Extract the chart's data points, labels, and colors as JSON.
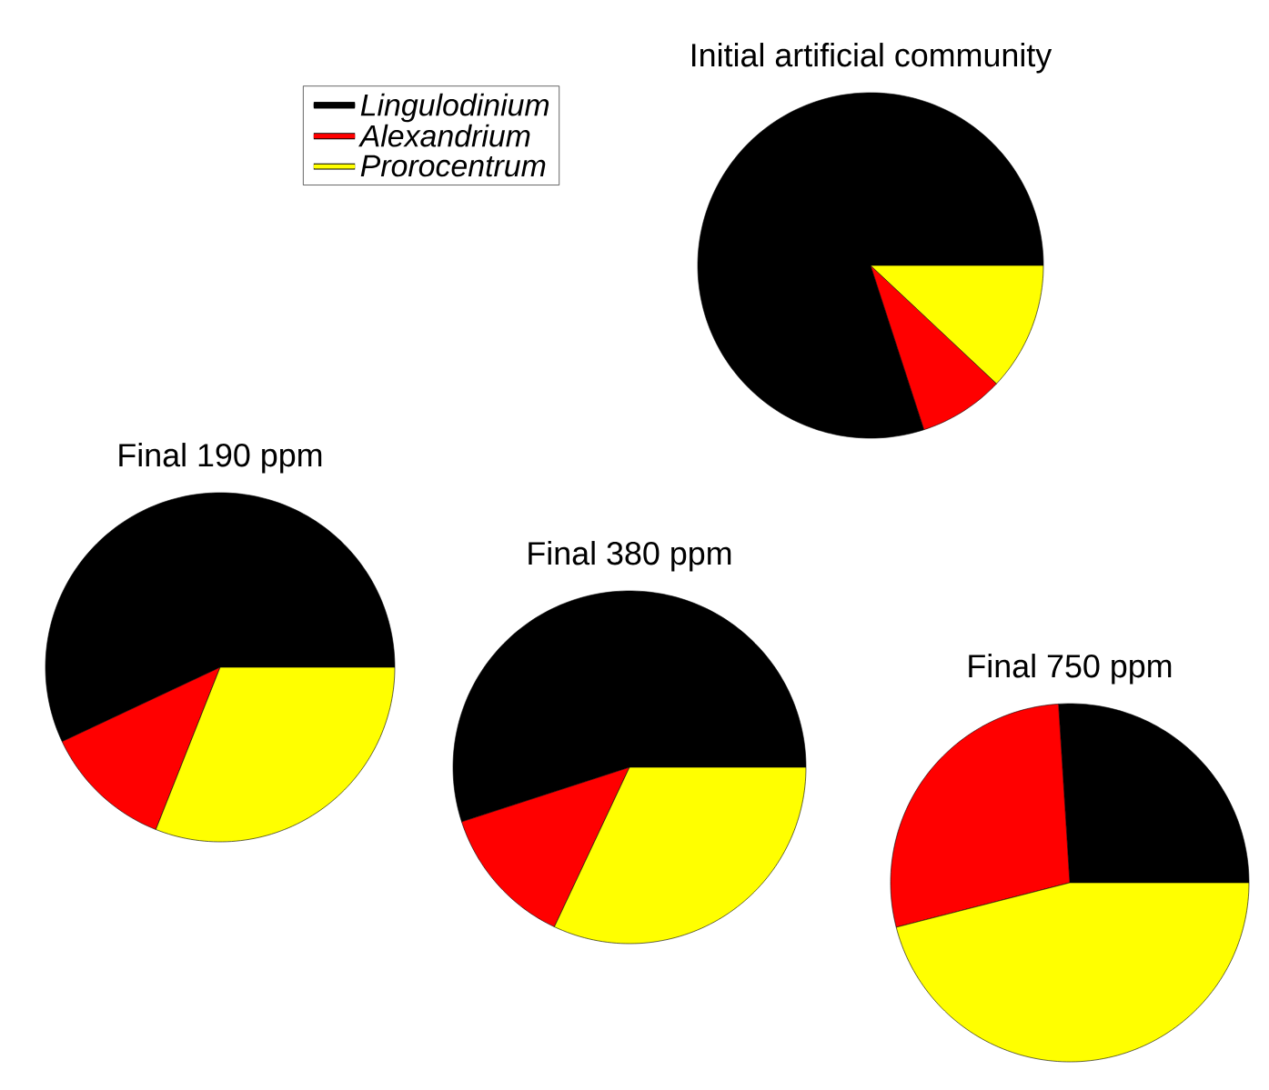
{
  "chart_data": [
    {
      "type": "pie",
      "title": "Initial artificial community",
      "categories": [
        "*Lingulodinium*",
        "*Alexandrium*",
        "*Prorocentrum*"
      ],
      "values": [
        80,
        8,
        12
      ],
      "colors": [
        "#000000",
        "#ff0000",
        "#ffff00"
      ],
      "legend": "top left"
    },
    {
      "type": "pie",
      "title": "Final 190 ppm",
      "categories": [
        null,
        null,
        null
      ],
      "values": [
        57,
        12,
        31
      ],
      "colors": [
        "#000000",
        "#ff0000",
        "#ffff00"
      ]
    },
    {
      "type": "pie",
      "title": "Final 380 ppm",
      "categories": [
        null,
        null,
        null
      ],
      "values": [
        55,
        13,
        32
      ],
      "colors": [
        "#000000",
        "#ff0000",
        "#ffff00"
      ]
    },
    {
      "type": "pie",
      "title": "Final 750 ppm",
      "categories": [
        null,
        null,
        null
      ],
      "values": [
        26,
        28,
        46
      ],
      "colors": [
        "#000000",
        "#ff0000",
        "#ffff00"
      ]
    }
  ]
}
